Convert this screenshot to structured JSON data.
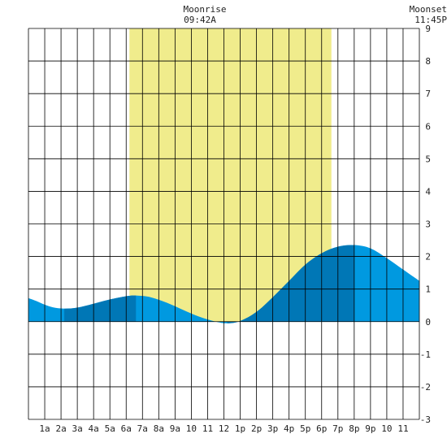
{
  "header": {
    "moonrise_label": "Moonrise",
    "moonrise_time": "09:42A",
    "moonset_label": "Moonset",
    "moonset_time": "11:45P"
  },
  "chart_data": {
    "type": "area",
    "title": "",
    "xlabel": "",
    "ylabel": "",
    "xlim": [
      0,
      24
    ],
    "ylim": [
      -3,
      9
    ],
    "grid": true,
    "y_ticks": [
      -3,
      -2,
      -1,
      0,
      1,
      2,
      3,
      4,
      5,
      6,
      7,
      8,
      9
    ],
    "x_ticks": [
      {
        "hour": 1,
        "label": "1a"
      },
      {
        "hour": 2,
        "label": "2a"
      },
      {
        "hour": 3,
        "label": "3a"
      },
      {
        "hour": 4,
        "label": "4a"
      },
      {
        "hour": 5,
        "label": "5a"
      },
      {
        "hour": 6,
        "label": "6a"
      },
      {
        "hour": 7,
        "label": "7a"
      },
      {
        "hour": 8,
        "label": "8a"
      },
      {
        "hour": 9,
        "label": "9a"
      },
      {
        "hour": 10,
        "label": "10"
      },
      {
        "hour": 11,
        "label": "11"
      },
      {
        "hour": 12,
        "label": "12"
      },
      {
        "hour": 13,
        "label": "1p"
      },
      {
        "hour": 14,
        "label": "2p"
      },
      {
        "hour": 15,
        "label": "3p"
      },
      {
        "hour": 16,
        "label": "4p"
      },
      {
        "hour": 17,
        "label": "5p"
      },
      {
        "hour": 18,
        "label": "6p"
      },
      {
        "hour": 19,
        "label": "7p"
      },
      {
        "hour": 20,
        "label": "8p"
      },
      {
        "hour": 21,
        "label": "9p"
      },
      {
        "hour": 22,
        "label": "10"
      },
      {
        "hour": 23,
        "label": "11"
      }
    ],
    "daylight": {
      "start_hour": 6.2,
      "end_hour": 18.6
    },
    "extrema": [
      {
        "hour": 2.2,
        "value": 0.4
      },
      {
        "hour": 6.6,
        "value": 0.8
      },
      {
        "hour": 12.2,
        "value": -0.05
      },
      {
        "hour": 20.0,
        "value": 2.35
      }
    ],
    "tide": [
      {
        "hour": 0,
        "value": 0.72
      },
      {
        "hour": 0.5,
        "value": 0.63
      },
      {
        "hour": 1,
        "value": 0.52
      },
      {
        "hour": 1.5,
        "value": 0.44
      },
      {
        "hour": 2.2,
        "value": 0.4
      },
      {
        "hour": 3,
        "value": 0.43
      },
      {
        "hour": 4,
        "value": 0.55
      },
      {
        "hour": 5,
        "value": 0.68
      },
      {
        "hour": 6,
        "value": 0.78
      },
      {
        "hour": 6.6,
        "value": 0.8
      },
      {
        "hour": 7.5,
        "value": 0.75
      },
      {
        "hour": 8.5,
        "value": 0.58
      },
      {
        "hour": 9.5,
        "value": 0.36
      },
      {
        "hour": 10.5,
        "value": 0.15
      },
      {
        "hour": 11.5,
        "value": 0.0
      },
      {
        "hour": 12.2,
        "value": -0.05
      },
      {
        "hour": 13,
        "value": 0.02
      },
      {
        "hour": 14,
        "value": 0.3
      },
      {
        "hour": 15,
        "value": 0.75
      },
      {
        "hour": 16,
        "value": 1.25
      },
      {
        "hour": 17,
        "value": 1.75
      },
      {
        "hour": 18,
        "value": 2.1
      },
      {
        "hour": 19,
        "value": 2.3
      },
      {
        "hour": 20,
        "value": 2.35
      },
      {
        "hour": 21,
        "value": 2.25
      },
      {
        "hour": 22,
        "value": 1.95
      },
      {
        "hour": 23,
        "value": 1.6
      },
      {
        "hour": 24,
        "value": 1.25
      }
    ],
    "colors": {
      "daylight": "#f0ec8c",
      "tide_light": "#0099e0",
      "tide_dark": "#0077b6",
      "grid": "#000000",
      "background": "#ffffff"
    }
  }
}
